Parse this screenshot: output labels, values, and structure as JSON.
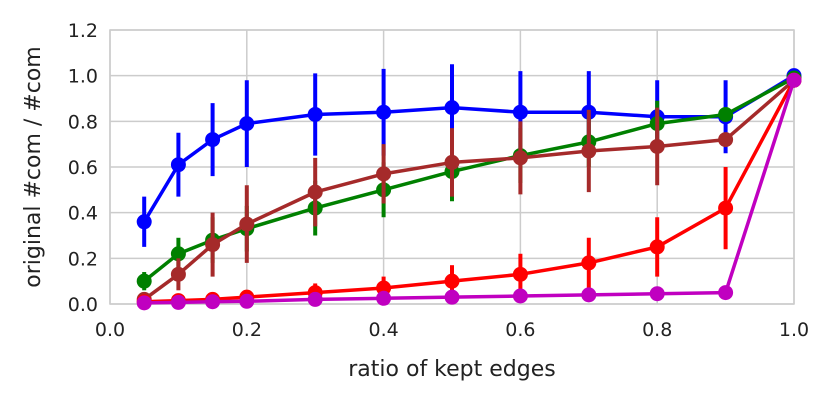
{
  "chart_data": {
    "type": "line",
    "title": "",
    "xlabel": "ratio of kept edges",
    "ylabel": "original #com / #com",
    "xlim": [
      0.0,
      1.0
    ],
    "ylim": [
      0.0,
      1.2
    ],
    "x_ticks": [
      "0.0",
      "0.2",
      "0.4",
      "0.6",
      "0.8",
      "1.0"
    ],
    "y_ticks": [
      "0.0",
      "0.2",
      "0.4",
      "0.6",
      "0.8",
      "1.0",
      "1.2"
    ],
    "grid": true,
    "legend": "none",
    "series": [
      {
        "color": "#0000ff",
        "x": [
          0.05,
          0.1,
          0.15,
          0.2,
          0.3,
          0.4,
          0.5,
          0.6,
          0.7,
          0.8,
          0.9,
          1.0
        ],
        "y": [
          0.36,
          0.61,
          0.72,
          0.79,
          0.83,
          0.84,
          0.86,
          0.84,
          0.84,
          0.82,
          0.82,
          1.0
        ],
        "err": [
          0.11,
          0.14,
          0.16,
          0.19,
          0.18,
          0.19,
          0.19,
          0.18,
          0.18,
          0.16,
          0.16,
          0.0
        ]
      },
      {
        "color": "#008000",
        "x": [
          0.05,
          0.1,
          0.15,
          0.2,
          0.3,
          0.4,
          0.5,
          0.6,
          0.7,
          0.8,
          0.9,
          1.0
        ],
        "y": [
          0.1,
          0.22,
          0.28,
          0.33,
          0.42,
          0.5,
          0.58,
          0.65,
          0.71,
          0.79,
          0.83,
          0.99
        ],
        "err": [
          0.04,
          0.07,
          0.1,
          0.1,
          0.12,
          0.12,
          0.13,
          0.12,
          0.11,
          0.1,
          0.0,
          0.0
        ]
      },
      {
        "color": "#a52a2a",
        "x": [
          0.05,
          0.1,
          0.15,
          0.2,
          0.3,
          0.4,
          0.5,
          0.6,
          0.7,
          0.8,
          0.9,
          1.0
        ],
        "y": [
          0.02,
          0.13,
          0.26,
          0.35,
          0.49,
          0.57,
          0.62,
          0.64,
          0.67,
          0.69,
          0.72,
          0.98
        ],
        "err": [
          0.02,
          0.07,
          0.14,
          0.17,
          0.15,
          0.13,
          0.15,
          0.16,
          0.18,
          0.17,
          0.0,
          0.0
        ]
      },
      {
        "color": "#ff0000",
        "x": [
          0.05,
          0.1,
          0.15,
          0.2,
          0.3,
          0.4,
          0.5,
          0.6,
          0.7,
          0.8,
          0.9,
          1.0
        ],
        "y": [
          0.01,
          0.015,
          0.02,
          0.03,
          0.05,
          0.07,
          0.1,
          0.13,
          0.18,
          0.25,
          0.42,
          0.98
        ],
        "err": [
          0.0,
          0.0,
          0.01,
          0.02,
          0.04,
          0.05,
          0.07,
          0.09,
          0.11,
          0.13,
          0.18,
          0.0
        ]
      },
      {
        "color": "#c000c0",
        "x": [
          0.05,
          0.1,
          0.15,
          0.2,
          0.3,
          0.4,
          0.5,
          0.6,
          0.7,
          0.8,
          0.9,
          1.0
        ],
        "y": [
          0.005,
          0.007,
          0.01,
          0.012,
          0.02,
          0.025,
          0.03,
          0.035,
          0.04,
          0.045,
          0.05,
          0.98
        ],
        "err": [
          0,
          0,
          0,
          0,
          0,
          0,
          0,
          0,
          0,
          0,
          0,
          0
        ]
      }
    ]
  }
}
